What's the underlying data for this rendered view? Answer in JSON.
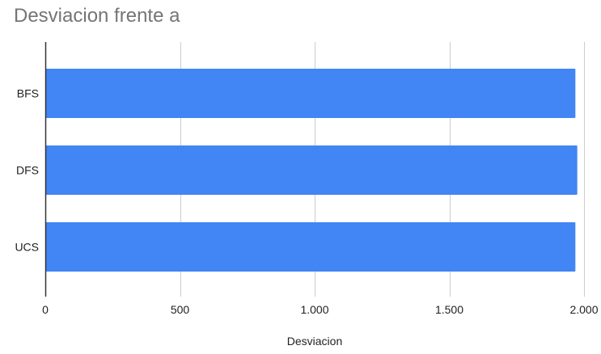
{
  "chart_data": {
    "type": "bar",
    "orientation": "horizontal",
    "title": "Desviacion frente a",
    "xlabel": "Desviacion",
    "ylabel": "",
    "categories": [
      "BFS",
      "DFS",
      "UCS"
    ],
    "values": [
      1968,
      1975,
      1968
    ],
    "xlim": [
      0,
      2000
    ],
    "ticks": [
      0,
      500,
      1000,
      1500,
      2000
    ],
    "tick_labels": [
      "0",
      "500",
      "1.000",
      "1.500",
      "2.000"
    ],
    "grid": "vertical",
    "legend": "none",
    "bar_color": "#4285f4",
    "grid_color": "#cccccc",
    "axis_color": "#333333"
  }
}
